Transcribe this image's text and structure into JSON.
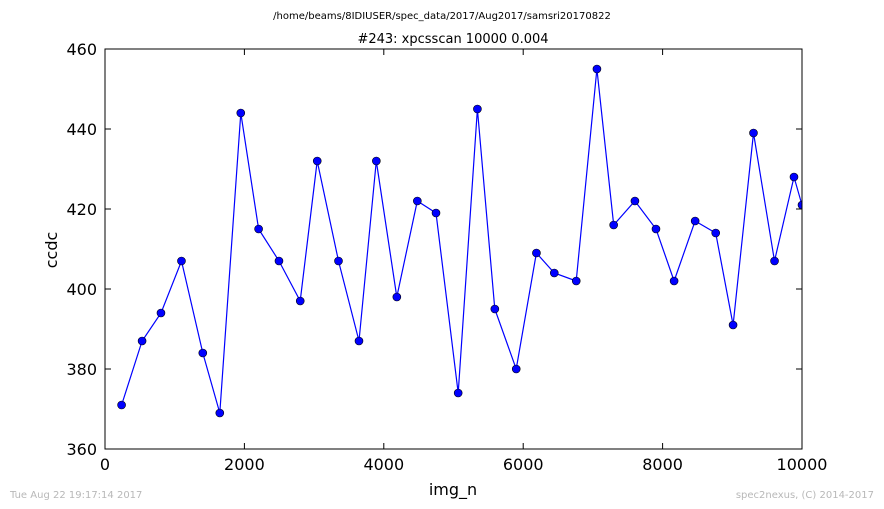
{
  "chart_data": {
    "type": "line",
    "suptitle": "/home/beams/8IDIUSER/spec_data/2017/Aug2017/samsri20170822",
    "title": "#243: xpcsscan 10000 0.004",
    "xlabel": "img_n",
    "ylabel": "ccdc",
    "xlim": [
      0,
      10000
    ],
    "ylim": [
      360,
      460
    ],
    "xticks": [
      "0",
      "2000",
      "4000",
      "6000",
      "8000",
      "10000"
    ],
    "yticks": [
      "360",
      "380",
      "400",
      "420",
      "440",
      "460"
    ],
    "grid": false,
    "series": [
      {
        "color": "#0000ff",
        "marker": "circle",
        "x": [
          238,
          532,
          803,
          1097,
          1403,
          1647,
          1948,
          2204,
          2496,
          2801,
          3045,
          3350,
          3644,
          3893,
          4187,
          4481,
          4749,
          5067,
          5343,
          5593,
          5900,
          6190,
          6446,
          6761,
          7058,
          7298,
          7603,
          7905,
          8165,
          8467,
          8762,
          9011,
          9304,
          9606,
          9885,
          10000
        ],
        "y": [
          371,
          387,
          394,
          407,
          384,
          369,
          444,
          415,
          407,
          397,
          432,
          407,
          387,
          432,
          398,
          422,
          419,
          374,
          445,
          395,
          380,
          409,
          404,
          402,
          455,
          416,
          422,
          415,
          402,
          417,
          414,
          391,
          439,
          407,
          428,
          421
        ]
      }
    ]
  },
  "footer": {
    "timestamp": "Tue Aug 22 19:17:14 2017",
    "credit": "spec2nexus, (C) 2014-2017"
  }
}
